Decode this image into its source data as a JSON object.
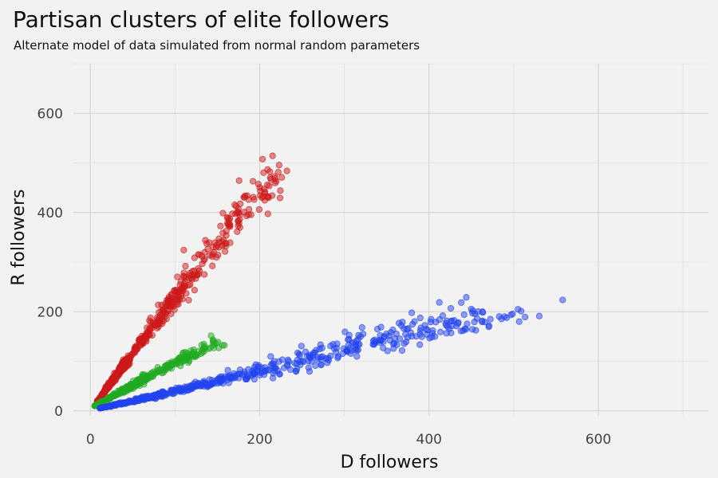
{
  "chart_data": {
    "type": "scatter",
    "title": "Partisan clusters of elite followers",
    "subtitle": "Alternate model of data simulated from normal random parameters",
    "xlabel": "D followers",
    "ylabel": "R followers",
    "xlim": [
      -20,
      730
    ],
    "ylim": [
      -10,
      700
    ],
    "x_ticks": [
      0,
      200,
      400,
      600
    ],
    "y_ticks": [
      0,
      200,
      400,
      600
    ],
    "grid": true,
    "legend": "none",
    "series": [
      {
        "color": "#cc1a1a",
        "clusters": [
          {
            "x0": 8,
            "y0": 18,
            "x1": 45,
            "y1": 105,
            "n": 300,
            "spread": 0.12
          },
          {
            "x0": 45,
            "y0": 105,
            "x1": 110,
            "y1": 250,
            "n": 170,
            "spread": 0.1
          },
          {
            "x0": 110,
            "y0": 250,
            "x1": 170,
            "y1": 390,
            "n": 90,
            "spread": 0.09
          },
          {
            "x0": 170,
            "y0": 390,
            "x1": 225,
            "y1": 480,
            "n": 60,
            "spread": 0.08
          }
        ]
      },
      {
        "color": "#22aa22",
        "clusters": [
          {
            "x0": 5,
            "y0": 10,
            "x1": 70,
            "y1": 70,
            "n": 230,
            "spread": 0.14
          },
          {
            "x0": 70,
            "y0": 70,
            "x1": 150,
            "y1": 140,
            "n": 110,
            "spread": 0.1
          }
        ]
      },
      {
        "color": "#2244ee",
        "clusters": [
          {
            "x0": 10,
            "y0": 5,
            "x1": 90,
            "y1": 35,
            "n": 250,
            "spread": 0.14
          },
          {
            "x0": 90,
            "y0": 35,
            "x1": 250,
            "y1": 100,
            "n": 180,
            "spread": 0.12
          },
          {
            "x0": 250,
            "y0": 100,
            "x1": 380,
            "y1": 160,
            "n": 110,
            "spread": 0.1
          },
          {
            "x0": 380,
            "y0": 160,
            "x1": 500,
            "y1": 205,
            "n": 80,
            "spread": 0.09
          }
        ]
      }
    ]
  }
}
